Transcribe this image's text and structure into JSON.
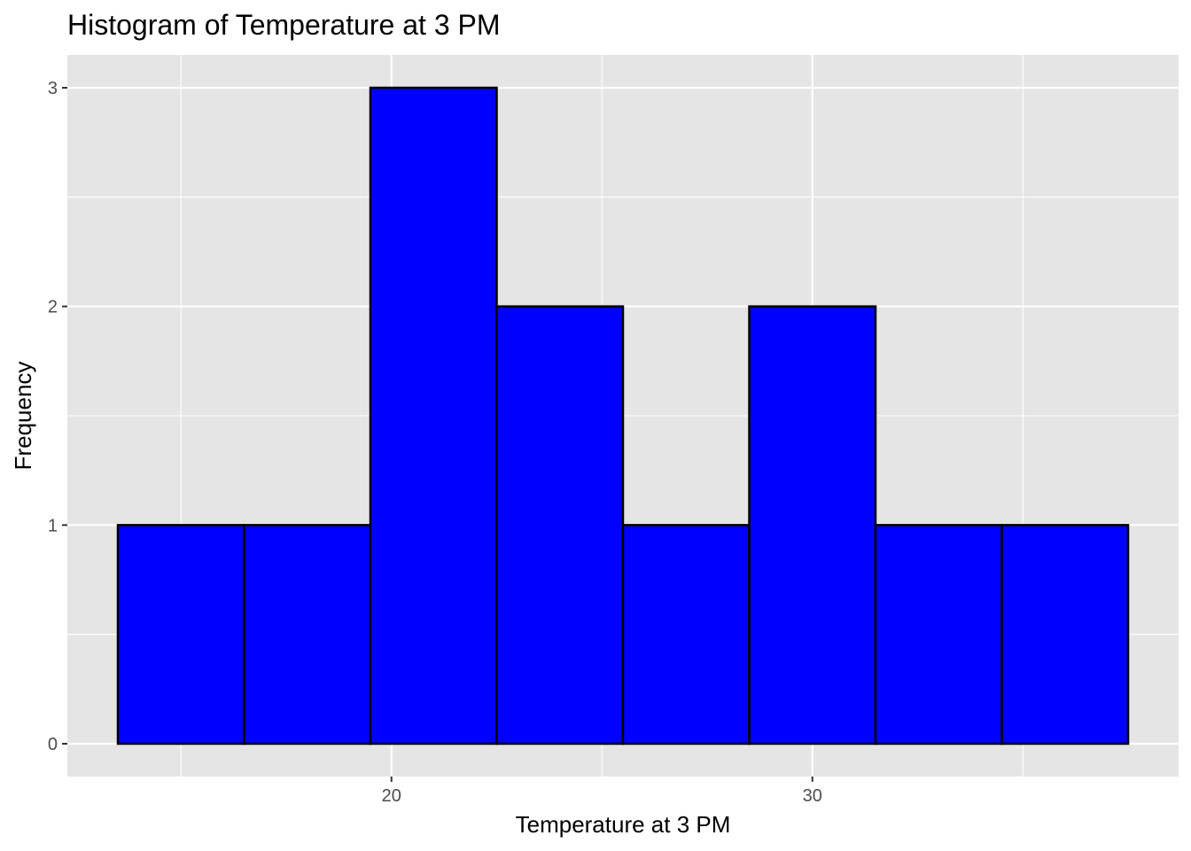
{
  "chart_data": {
    "type": "bar",
    "title": "Histogram of Temperature at 3 PM",
    "xlabel": "Temperature at 3 PM",
    "ylabel": "Frequency",
    "bins": [
      {
        "start": 13.5,
        "end": 16.5,
        "count": 1
      },
      {
        "start": 16.5,
        "end": 19.5,
        "count": 1
      },
      {
        "start": 19.5,
        "end": 22.5,
        "count": 3
      },
      {
        "start": 22.5,
        "end": 25.5,
        "count": 2
      },
      {
        "start": 25.5,
        "end": 28.5,
        "count": 1
      },
      {
        "start": 28.5,
        "end": 31.5,
        "count": 2
      },
      {
        "start": 31.5,
        "end": 34.5,
        "count": 1
      },
      {
        "start": 34.5,
        "end": 37.5,
        "count": 1
      }
    ],
    "xlim": [
      12.3,
      38.7
    ],
    "ylim": [
      -0.15,
      3.15
    ],
    "x_ticks": [
      20,
      30
    ],
    "x_tick_labels": [
      "20",
      "30"
    ],
    "x_minor_grid": [
      15,
      25,
      35
    ],
    "y_ticks": [
      0,
      1,
      2,
      3
    ],
    "y_tick_labels": [
      "0",
      "1",
      "2",
      "3"
    ],
    "y_minor_grid": [
      0.5,
      1.5,
      2.5
    ],
    "grid": true,
    "colors": {
      "bar_fill": "#0000ff",
      "bar_outline": "#000000",
      "panel_background": "#e5e5e5",
      "grid_line": "#ffffff"
    }
  }
}
